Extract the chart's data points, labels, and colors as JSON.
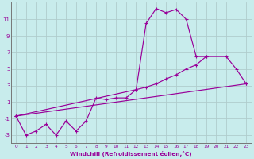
{
  "xlabel": "Windchill (Refroidissement éolien,°C)",
  "x": [
    0,
    1,
    2,
    3,
    4,
    5,
    6,
    7,
    8,
    9,
    10,
    11,
    12,
    13,
    14,
    15,
    16,
    17,
    18,
    19,
    20,
    21,
    22,
    23
  ],
  "line1": [
    -0.7,
    -3.0,
    -2.5,
    -1.7,
    -3.0,
    -1.3,
    -2.5,
    -1.3,
    1.5,
    1.3,
    1.5,
    1.5,
    2.5,
    10.5,
    12.3,
    11.8,
    12.2,
    11.0,
    6.5,
    6.5,
    null,
    null,
    null,
    null
  ],
  "line2": [
    -0.7,
    null,
    null,
    null,
    null,
    null,
    null,
    null,
    null,
    null,
    null,
    null,
    2.5,
    2.8,
    3.2,
    3.8,
    4.3,
    5.0,
    5.5,
    6.5,
    null,
    6.5,
    5.0,
    3.2
  ],
  "line3_x": [
    0,
    23
  ],
  "line3_y": [
    -0.7,
    3.2
  ],
  "line_color": "#990099",
  "bg_color": "#c8ecec",
  "grid_color": "#b0cccc",
  "ylim": [
    -4,
    13
  ],
  "xlim": [
    -0.5,
    23.5
  ],
  "yticks": [
    -3,
    -1,
    1,
    3,
    5,
    7,
    9,
    11
  ],
  "xticks": [
    0,
    1,
    2,
    3,
    4,
    5,
    6,
    7,
    8,
    9,
    10,
    11,
    12,
    13,
    14,
    15,
    16,
    17,
    18,
    19,
    20,
    21,
    22,
    23
  ]
}
